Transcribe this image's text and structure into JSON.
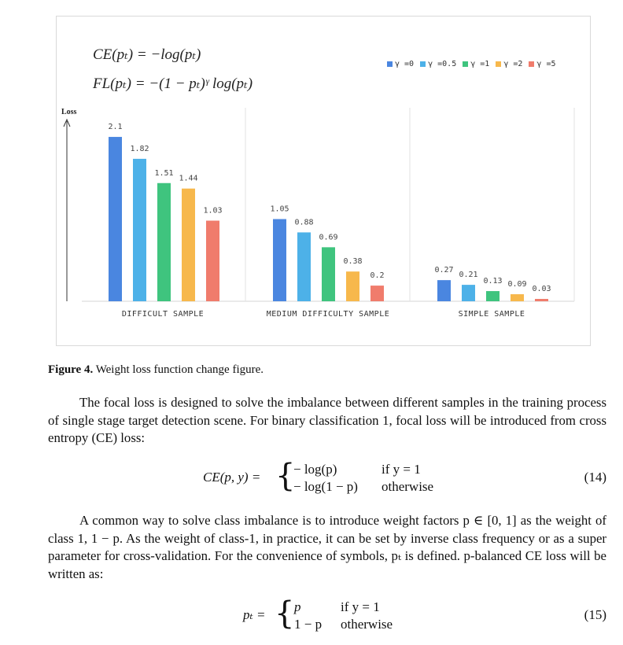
{
  "figure": {
    "formula_ce": "CE(pₜ) = −log(pₜ)",
    "formula_fl": "FL(pₜ) = −(1 − pₜ)ᵞ log(pₜ)",
    "legend": [
      {
        "label": "γ =0",
        "color": "#4a86e0"
      },
      {
        "label": "γ =0.5",
        "color": "#4db1e8"
      },
      {
        "label": "γ =1",
        "color": "#3fc47e"
      },
      {
        "label": "γ =2",
        "color": "#f7b84c"
      },
      {
        "label": "γ =5",
        "color": "#f07c6c"
      }
    ]
  },
  "chart_data": {
    "type": "bar",
    "ylabel": "Loss",
    "categories": [
      "DIFFICULT SAMPLE",
      "MEDIUM DIFFICULTY SAMPLE",
      "SIMPLE SAMPLE"
    ],
    "series": [
      {
        "name": "γ =0",
        "values": [
          2.1,
          1.05,
          0.27
        ],
        "labels": [
          "2.1",
          "1.05",
          "0.27"
        ],
        "color": "#4a86e0"
      },
      {
        "name": "γ =0.5",
        "values": [
          1.82,
          0.88,
          0.21
        ],
        "labels": [
          "1.82",
          "0.88",
          "0.21"
        ],
        "color": "#4db1e8"
      },
      {
        "name": "γ =1",
        "values": [
          1.51,
          0.69,
          0.13
        ],
        "labels": [
          "1.51",
          "0.69",
          "0.13"
        ],
        "color": "#3fc47e"
      },
      {
        "name": "γ =2",
        "values": [
          1.44,
          0.38,
          0.09
        ],
        "labels": [
          "1.44",
          "0.38",
          "0.09"
        ],
        "color": "#f7b84c"
      },
      {
        "name": "γ =5",
        "values": [
          1.03,
          0.2,
          0.03
        ],
        "labels": [
          "1.03",
          "0.2",
          "0.03"
        ],
        "color": "#f07c6c"
      }
    ],
    "ylim": [
      0,
      2.3
    ],
    "legend": "top-right",
    "grid": false
  },
  "caption": {
    "label": "Figure 4.",
    "text": " Weight loss function change figure."
  },
  "paragraph1": "The focal loss is designed to solve the imbalance between different samples in the training process of single stage target detection scene. For binary classification 1, focal loss will be introduced from cross entropy (CE) loss:",
  "eq14": {
    "lhs": "CE(p, y) =",
    "case1_expr": "− log(p)",
    "case1_cond": "if y = 1",
    "case2_expr": "− log(1 − p)",
    "case2_cond": "otherwise",
    "number": "(14)"
  },
  "paragraph2": "A common way to solve class imbalance is to introduce weight factors p ∈ [0, 1] as the weight of class 1, 1 − p. As the weight of class-1, in practice, it can be set by inverse class frequency or as a super parameter for cross-validation. For the convenience of symbols, pₜ is defined. p-balanced CE loss will be written as:",
  "eq15": {
    "lhs": "pₜ =",
    "case1_expr": "p",
    "case1_cond": "if y = 1",
    "case2_expr": "1 − p",
    "case2_cond": "otherwise",
    "number": "(15)"
  }
}
